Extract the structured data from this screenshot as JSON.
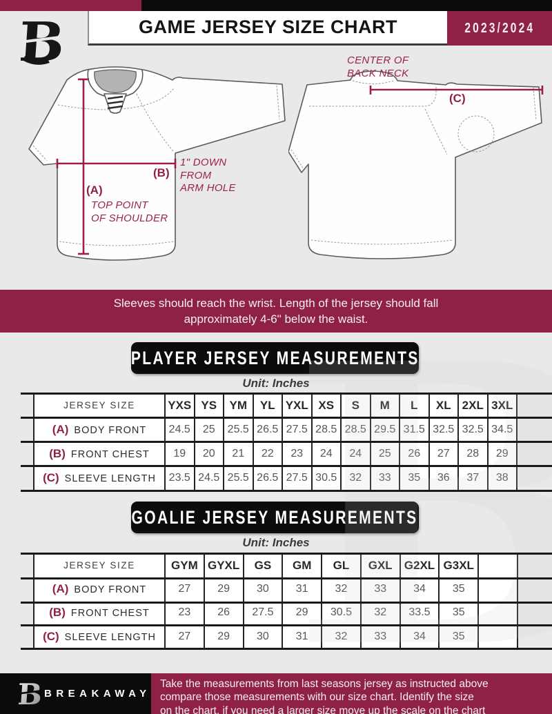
{
  "header": {
    "title": "GAME JERSEY SIZE CHART",
    "season": "2023/2024"
  },
  "diagram": {
    "front_label_a": "(A)",
    "front_note_a": "TOP POINT\nOF SHOULDER",
    "front_label_b": "(B)",
    "front_note_b": "1\" DOWN\nFROM\nARM HOLE",
    "back_label_c": "(C)",
    "back_note_c": "CENTER OF\nBACK NECK"
  },
  "notice": "Sleeves should reach the wrist. Length of the jersey should fall\napproximately 4-6\" below the waist.",
  "player_table": {
    "title": "PLAYER JERSEY MEASUREMENTS",
    "unit": "Unit: Inches",
    "size_header_label": "JERSEY SIZE",
    "columns": [
      "YXS",
      "YS",
      "YM",
      "YL",
      "YXL",
      "XS",
      "S",
      "M",
      "L",
      "XL",
      "2XL",
      "3XL"
    ],
    "rows": [
      {
        "key": "(A)",
        "label": "BODY FRONT",
        "values": [
          "24.5",
          "25",
          "25.5",
          "26.5",
          "27.5",
          "28.5",
          "28.5",
          "29.5",
          "31.5",
          "32.5",
          "32.5",
          "34.5"
        ]
      },
      {
        "key": "(B)",
        "label": "FRONT CHEST",
        "values": [
          "19",
          "20",
          "21",
          "22",
          "23",
          "24",
          "24",
          "25",
          "26",
          "27",
          "28",
          "29"
        ]
      },
      {
        "key": "(C)",
        "label": "SLEEVE LENGTH",
        "values": [
          "23.5",
          "24.5",
          "25.5",
          "26.5",
          "27.5",
          "30.5",
          "32",
          "33",
          "35",
          "36",
          "37",
          "38"
        ]
      }
    ]
  },
  "goalie_table": {
    "title": "GOALIE JERSEY MEASUREMENTS",
    "unit": "Unit: Inches",
    "size_header_label": "JERSEY SIZE",
    "columns": [
      "GYM",
      "GYXL",
      "GS",
      "GM",
      "GL",
      "GXL",
      "G2XL",
      "G3XL",
      ""
    ],
    "rows": [
      {
        "key": "(A)",
        "label": "BODY FRONT",
        "values": [
          "27",
          "29",
          "30",
          "31",
          "32",
          "33",
          "34",
          "35",
          ""
        ]
      },
      {
        "key": "(B)",
        "label": "FRONT CHEST",
        "values": [
          "23",
          "26",
          "27.5",
          "29",
          "30.5",
          "32",
          "33.5",
          "35",
          ""
        ]
      },
      {
        "key": "(C)",
        "label": "SLEEVE LENGTH",
        "values": [
          "27",
          "29",
          "30",
          "31",
          "32",
          "33",
          "34",
          "35",
          ""
        ]
      }
    ]
  },
  "footer": {
    "brand": "BREAKAWAY",
    "note": "Take the measurements from last seasons jersey as instructed above\ncompare those measurements  with our size chart. Identify the size\non the chart, if you need a larger size move up the scale on the chart"
  },
  "colors": {
    "maroon": "#8e2145",
    "black": "#0b0b0b",
    "page_bg": "#e9e9ea",
    "annotation": "#9b2248"
  }
}
